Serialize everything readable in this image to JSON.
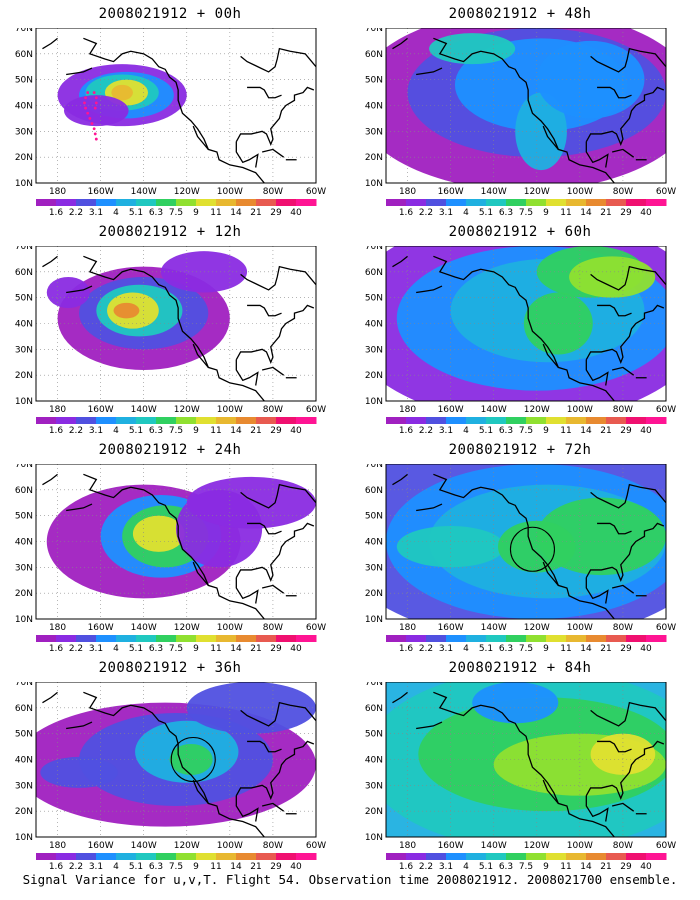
{
  "panels": [
    {
      "title": "2008021912 + 00h",
      "variant": 0,
      "circle": false,
      "track": true
    },
    {
      "title": "2008021912 + 12h",
      "variant": 1,
      "circle": false,
      "track": false
    },
    {
      "title": "2008021912 + 24h",
      "variant": 2,
      "circle": false,
      "track": false
    },
    {
      "title": "2008021912 + 36h",
      "variant": 3,
      "circle": true,
      "track": false
    },
    {
      "title": "2008021912 + 48h",
      "variant": 4,
      "circle": false,
      "track": false
    },
    {
      "title": "2008021912 + 60h",
      "variant": 5,
      "circle": false,
      "track": false
    },
    {
      "title": "2008021912 + 72h",
      "variant": 6,
      "circle": true,
      "track": false
    },
    {
      "title": "2008021912 + 84h",
      "variant": 7,
      "circle": false,
      "track": false
    }
  ],
  "lat_labels": [
    "70N",
    "60N",
    "50N",
    "40N",
    "30N",
    "20N",
    "10N"
  ],
  "lon_labels": [
    "180",
    "160W",
    "140W",
    "120W",
    "100W",
    "80W",
    "60W"
  ],
  "colorbar": {
    "labels": [
      "1.6",
      "2.2",
      "3.1",
      "4",
      "5.1",
      "6.3",
      "7.5",
      "9",
      "11",
      "14",
      "21",
      "29",
      "40"
    ],
    "colors": [
      "#a020c0",
      "#8a2be2",
      "#5050e0",
      "#1e90ff",
      "#1fb0e0",
      "#20c8c0",
      "#30d060",
      "#90e030",
      "#e0e030",
      "#e8b830",
      "#e88a30",
      "#e85a50",
      "#f01070",
      "#ff1493"
    ]
  },
  "caption": "Signal Variance for u,v,T. Flight 54. Observation time 2008021912. 2008021700 ensemble."
}
